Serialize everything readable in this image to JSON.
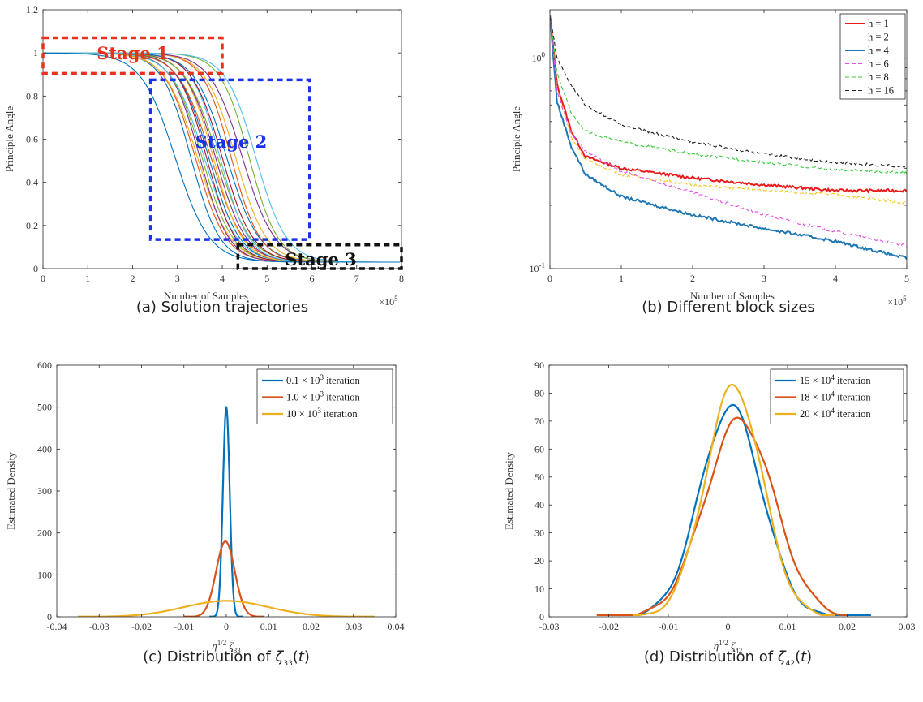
{
  "chart_data": [
    {
      "type": "line",
      "panel": "a",
      "caption": "(a) Solution trajectories",
      "xlabel": "Number of Samples",
      "ylabel": "Principle Angle",
      "x_multiplier": "×10^5",
      "xlim": [
        0,
        8
      ],
      "ylim": [
        0,
        1.2
      ],
      "xticks": [
        "0",
        "1",
        "2",
        "3",
        "4",
        "5",
        "6",
        "7",
        "8"
      ],
      "yticks": [
        "0",
        "0.2",
        "0.4",
        "0.6",
        "0.8",
        "1",
        "1.2"
      ],
      "annotations": [
        {
          "text": "Stage 1",
          "color": "#e8321e"
        },
        {
          "text": "Stage 2",
          "color": "#1a33e6"
        },
        {
          "text": "Stage 3",
          "color": "#111111"
        }
      ],
      "trajectory_midpoints": [
        3.3,
        3.4,
        3.45,
        3.5,
        3.55,
        3.6,
        3.65,
        3.7,
        3.75,
        3.8,
        3.85,
        3.9,
        3.95,
        4.0,
        4.1,
        4.2,
        4.3,
        4.45,
        4.6,
        4.75
      ],
      "early_curve_midpoint": 2.95,
      "series_colors": [
        "#0072BD",
        "#D95319",
        "#EDB120",
        "#7E2F8E",
        "#77AC30",
        "#4DBEEE",
        "#A2142F"
      ],
      "final_value": 0.03
    },
    {
      "type": "line",
      "panel": "b",
      "caption": "(b) Different block sizes",
      "xlabel": "Number of Samples",
      "ylabel": "Principle Angle",
      "x_multiplier": "×10^5",
      "yscale": "log",
      "xlim": [
        0,
        5
      ],
      "ylim": [
        0.1,
        1.7
      ],
      "xticks": [
        "0",
        "1",
        "2",
        "3",
        "4",
        "5"
      ],
      "legend_position": "top-right",
      "series": [
        {
          "name": "h = 1",
          "color": "#e81a1a",
          "dash": "solid",
          "x": [
            0,
            0.1,
            0.3,
            0.5,
            1,
            2,
            3,
            4,
            5
          ],
          "y": [
            1.6,
            0.75,
            0.45,
            0.34,
            0.3,
            0.27,
            0.25,
            0.235,
            0.235
          ]
        },
        {
          "name": "h = 2",
          "color": "#f5c518",
          "dash": "dashed",
          "x": [
            0,
            0.1,
            0.3,
            0.5,
            1,
            2,
            3,
            4,
            5
          ],
          "y": [
            1.6,
            0.72,
            0.42,
            0.33,
            0.28,
            0.25,
            0.235,
            0.225,
            0.205
          ]
        },
        {
          "name": "h = 4",
          "color": "#1f77b4",
          "dash": "solid",
          "x": [
            0,
            0.1,
            0.3,
            0.5,
            1,
            2,
            3,
            4,
            5
          ],
          "y": [
            1.6,
            0.62,
            0.38,
            0.28,
            0.22,
            0.18,
            0.155,
            0.135,
            0.112
          ]
        },
        {
          "name": "h = 6",
          "color": "#e64ce6",
          "dash": "dashed",
          "x": [
            0,
            0.1,
            0.3,
            0.5,
            1,
            2,
            3,
            4,
            5
          ],
          "y": [
            1.6,
            0.7,
            0.44,
            0.36,
            0.29,
            0.23,
            0.18,
            0.15,
            0.128
          ]
        },
        {
          "name": "h = 8",
          "color": "#33cc33",
          "dash": "dashed",
          "x": [
            0,
            0.1,
            0.3,
            0.5,
            1,
            2,
            3,
            4,
            5
          ],
          "y": [
            1.6,
            0.85,
            0.55,
            0.45,
            0.4,
            0.35,
            0.32,
            0.295,
            0.285
          ]
        },
        {
          "name": "h = 16",
          "color": "#222222",
          "dash": "dashed",
          "x": [
            0,
            0.1,
            0.3,
            0.5,
            1,
            2,
            3,
            4,
            5
          ],
          "y": [
            1.6,
            1.0,
            0.74,
            0.6,
            0.48,
            0.4,
            0.35,
            0.32,
            0.305
          ]
        }
      ]
    },
    {
      "type": "line",
      "panel": "c",
      "caption": "(c) Distribution of ζ33(t)",
      "xlabel": "η^1/2 ζ33",
      "ylabel": "Estimated Density",
      "xlim": [
        -0.04,
        0.04
      ],
      "ylim": [
        0,
        600
      ],
      "xticks": [
        "-0.04",
        "-0.03",
        "-0.02",
        "-0.01",
        "0",
        "0.01",
        "0.02",
        "0.03",
        "0.04"
      ],
      "yticks": [
        "0",
        "100",
        "200",
        "300",
        "400",
        "500",
        "600"
      ],
      "legend_position": "top-right",
      "series": [
        {
          "name": "0.1 × 10^3 iteration",
          "color": "#0072BD",
          "peak": 500,
          "mean": 0.0,
          "sd": 0.0008,
          "range": [
            -0.004,
            0.004
          ]
        },
        {
          "name": "1.0 × 10^3 iteration",
          "color": "#D95319",
          "peak": 180,
          "mean": -0.0002,
          "sd": 0.0022,
          "range": [
            -0.01,
            0.009
          ]
        },
        {
          "name": "10 × 10^3 iteration",
          "color": "#EDB120",
          "peak": 38,
          "mean": 0.0,
          "sd": 0.01,
          "range": [
            -0.035,
            0.035
          ]
        }
      ]
    },
    {
      "type": "line",
      "panel": "d",
      "caption": "(d) Distribution of ζ42(t)",
      "xlabel": "η^1/2 ζ42",
      "ylabel": "Estimated Density",
      "xlim": [
        -0.03,
        0.03
      ],
      "ylim": [
        0,
        90
      ],
      "xticks": [
        "-0.03",
        "-0.02",
        "-0.01",
        "0",
        "0.01",
        "0.02",
        "0.03"
      ],
      "yticks": [
        "0",
        "10",
        "20",
        "30",
        "40",
        "50",
        "60",
        "70",
        "80",
        "90"
      ],
      "legend_position": "top-right",
      "series": [
        {
          "name": "15 × 10^4 iteration",
          "color": "#0072BD",
          "peak": 75,
          "mean": 0.0005,
          "sd": 0.0052,
          "range": [
            -0.016,
            0.024
          ]
        },
        {
          "name": "18 × 10^4 iteration",
          "color": "#D95319",
          "peak": 70.5,
          "mean": 0.002,
          "sd": 0.0058,
          "range": [
            -0.022,
            0.02
          ]
        },
        {
          "name": "20 × 10^4 iteration",
          "color": "#EDB120",
          "peak": 82.5,
          "mean": 0.001,
          "sd": 0.0048,
          "range": [
            -0.016,
            0.018
          ]
        }
      ]
    }
  ]
}
